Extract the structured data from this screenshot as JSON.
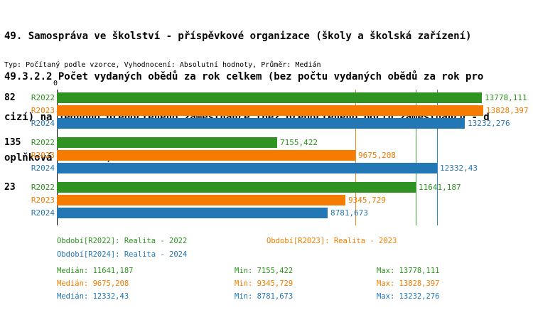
{
  "header": {
    "title_lines": [
      "49. Samospráva ve školství - příspěvkové organizace (školy a školská zařízení)",
      "49.3.2.2 Počet vydaných obědů za rok celkem (bez počtu vydaných obědů za rok pro",
      "cizí) na jednoho přepočteného zaměstnance (bez přepočteného počtu zaměstnanců - d",
      "oplňková činnost )"
    ],
    "meta_line": "Typ: Počítaný podle vzorce, Vyhodnocení: Absolutní hodnoty, Průměr: Medián"
  },
  "chart_data": {
    "type": "bar",
    "orientation": "horizontal",
    "x_axis": {
      "origin_label": "0",
      "min": 0,
      "max": 13828.397
    },
    "series": [
      "R2022",
      "R2023",
      "R2024"
    ],
    "series_colors": {
      "R2022": "#2e9320",
      "R2023": "#f57c00",
      "R2024": "#2377b4"
    },
    "groups": [
      {
        "label": "82",
        "values": {
          "R2022": 13778.111,
          "R2023": 13828.397,
          "R2024": 13232.276
        },
        "value_labels": {
          "R2022": "13778,111",
          "R2023": "13828,397",
          "R2024": "13232,276"
        }
      },
      {
        "label": "135",
        "values": {
          "R2022": 7155.422,
          "R2023": 9675.208,
          "R2024": 12332.43
        },
        "value_labels": {
          "R2022": "7155,422",
          "R2023": "9675,208",
          "R2024": "12332,43"
        }
      },
      {
        "label": "23",
        "values": {
          "R2022": 11641.187,
          "R2023": 9345.729,
          "R2024": 8781.673
        },
        "value_labels": {
          "R2022": "11641,187",
          "R2023": "9345,729",
          "R2024": "8781,673"
        }
      }
    ],
    "median_lines": [
      {
        "series": "R2022",
        "value": 11641.187
      },
      {
        "series": "R2023",
        "value": 9675.208
      },
      {
        "series": "R2024",
        "value": 12332.43
      }
    ],
    "legend": [
      {
        "series": "R2022",
        "label": "Období[R2022]: Realita - 2022"
      },
      {
        "series": "R2023",
        "label": "Období[R2023]: Realita - 2023"
      },
      {
        "series": "R2024",
        "label": "Období[R2024]: Realita - 2024"
      }
    ],
    "stats": [
      {
        "series": "R2022",
        "median": "Medián: 11641,187",
        "min": "Min: 7155,422",
        "max": "Max: 13778,111"
      },
      {
        "series": "R2023",
        "median": "Medián: 9675,208",
        "min": "Min: 9345,729",
        "max": "Max: 13828,397"
      },
      {
        "series": "R2024",
        "median": "Medián: 12332,43",
        "min": "Min: 8781,673",
        "max": "Max: 13232,276"
      }
    ]
  }
}
